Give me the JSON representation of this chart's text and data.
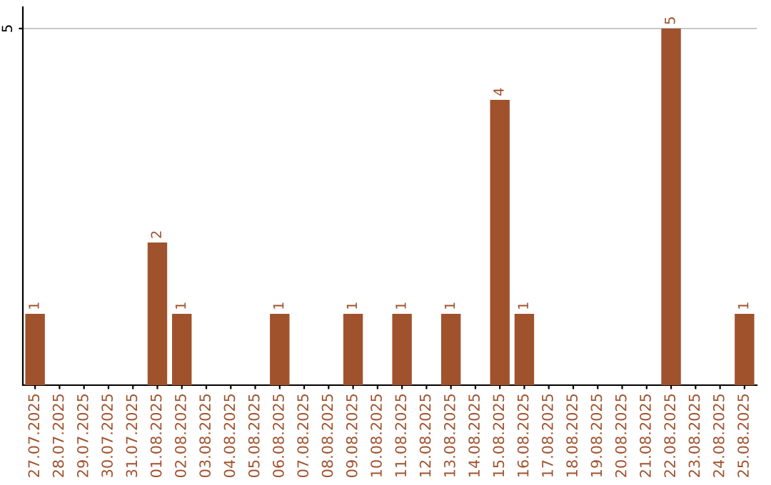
{
  "chart_data": {
    "type": "bar",
    "categories": [
      "27.07.2025",
      "28.07.2025",
      "29.07.2025",
      "30.07.2025",
      "31.07.2025",
      "01.08.2025",
      "02.08.2025",
      "03.08.2025",
      "04.08.2025",
      "05.08.2025",
      "06.08.2025",
      "07.08.2025",
      "08.08.2025",
      "09.08.2025",
      "10.08.2025",
      "11.08.2025",
      "12.08.2025",
      "13.08.2025",
      "14.08.2025",
      "15.08.2025",
      "16.08.2025",
      "17.08.2025",
      "18.08.2025",
      "19.08.2025",
      "20.08.2025",
      "21.08.2025",
      "22.08.2025",
      "23.08.2025",
      "24.08.2025",
      "25.08.2025"
    ],
    "values": [
      1,
      0,
      0,
      0,
      0,
      2,
      1,
      0,
      0,
      0,
      1,
      0,
      0,
      1,
      0,
      1,
      0,
      1,
      0,
      4,
      1,
      0,
      0,
      0,
      0,
      0,
      5,
      0,
      0,
      1
    ],
    "value_labels": [
      "1",
      null,
      null,
      null,
      null,
      "2",
      "1",
      null,
      null,
      null,
      "1",
      null,
      null,
      "1",
      null,
      "1",
      null,
      "1",
      null,
      "4",
      "1",
      null,
      null,
      null,
      null,
      null,
      "5",
      null,
      null,
      "1"
    ],
    "color": "#a0522d",
    "ylim": [
      0,
      5.3
    ],
    "yticks": [
      5
    ],
    "grid": "y",
    "legend": false
  }
}
